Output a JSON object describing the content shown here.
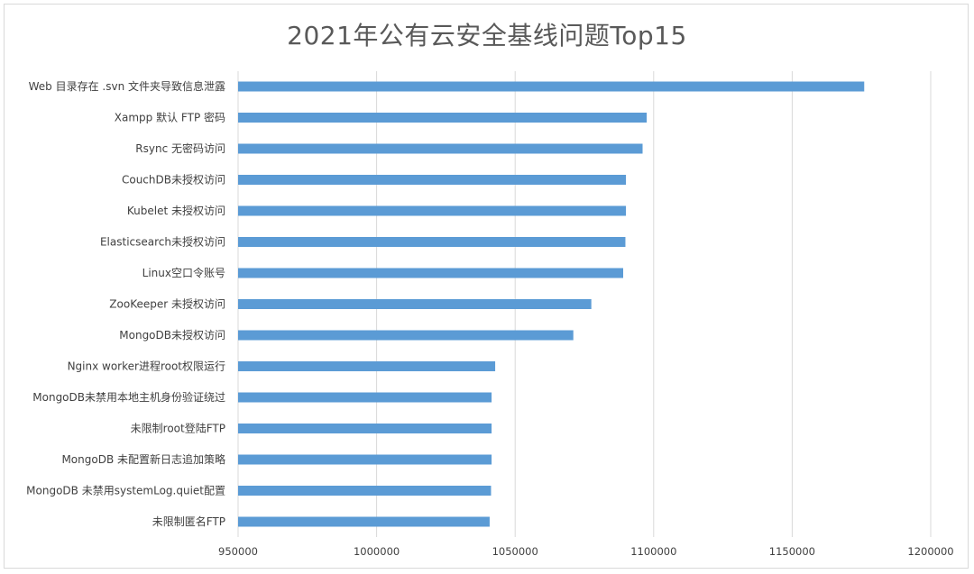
{
  "chart_data": {
    "type": "bar",
    "orientation": "horizontal",
    "title": "2021年公有云安全基线问题Top15",
    "categories": [
      "Web 目录存在 .svn 文件夹导致信息泄露",
      "Xampp 默认 FTP 密码",
      "Rsync 无密码访问",
      "CouchDB未授权访问",
      "Kubelet 未授权访问",
      "Elasticsearch未授权访问",
      "Linux空口令账号",
      "ZooKeeper 未授权访问",
      "MongoDB未授权访问",
      "Nginx worker进程root权限运行",
      "MongoDB未禁用本地主机身份验证绕过",
      "未限制root登陆FTP",
      "MongoDB 未配置新日志追加策略",
      "MongoDB 未禁用systemLog.quiet配置",
      "未限制匿名FTP"
    ],
    "values": [
      1176000,
      1097500,
      1096000,
      1090000,
      1090000,
      1089800,
      1089000,
      1077500,
      1071000,
      1042800,
      1041500,
      1041500,
      1041500,
      1041300,
      1040800
    ],
    "xlim": [
      950000,
      1200000
    ],
    "xticks": [
      "950000",
      "1000000",
      "1050000",
      "1100000",
      "1150000",
      "1200000"
    ],
    "grid": true,
    "legend": "none",
    "bar_color": "#5b9bd5",
    "grid_color": "#d9d9d9"
  }
}
